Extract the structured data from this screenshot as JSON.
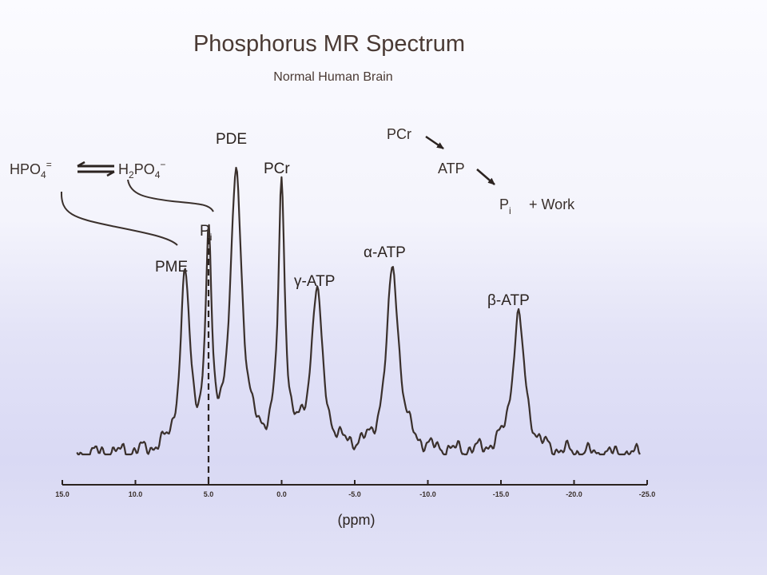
{
  "chart_data": {
    "type": "line",
    "title": "Phosphorus MR Spectrum",
    "subtitle": "Normal Human Brain",
    "xlabel": "(ppm)",
    "ylabel": "",
    "xlim": [
      15.0,
      -25.0
    ],
    "x_reversed": true,
    "xticks": [
      {
        "value": 15.0,
        "label": "15.0"
      },
      {
        "value": 10.0,
        "label": "10.0"
      },
      {
        "value": 5.0,
        "label": "5.0"
      },
      {
        "value": 0.0,
        "label": "0.0"
      },
      {
        "value": -5.0,
        "label": "-5.0"
      },
      {
        "value": -10.0,
        "label": "-10.0"
      },
      {
        "value": -15.0,
        "label": "-15.0"
      },
      {
        "value": -20.0,
        "label": "-20.0"
      },
      {
        "value": -25.0,
        "label": "-25.0"
      }
    ],
    "ylim": [
      0,
      1
    ],
    "grid": false,
    "reference_line_ppm": 5.0,
    "baseline_ppm_range": [
      14.0,
      -24.5
    ],
    "peaks": [
      {
        "label": "PME",
        "ppm": 6.6,
        "height": 0.62,
        "width": 0.45
      },
      {
        "label": "Pi",
        "ppm": 5.0,
        "height": 0.72,
        "width": 0.28
      },
      {
        "label": "PDE",
        "ppm": 3.1,
        "height": 1.0,
        "width": 0.55
      },
      {
        "label": "PCr",
        "ppm": 0.0,
        "height": 0.93,
        "width": 0.32
      },
      {
        "label": "γ-ATP",
        "ppm": -2.4,
        "height": 0.57,
        "width": 0.55
      },
      {
        "label": "α-ATP",
        "ppm": -7.6,
        "height": 0.66,
        "width": 0.6
      },
      {
        "label": "β-ATP",
        "ppm": -16.2,
        "height": 0.49,
        "width": 0.6
      }
    ]
  },
  "peak_labels": {
    "pme": "PME",
    "pi_main": "P",
    "pi_sub": "i",
    "pde": "PDE",
    "pcr": "PCr",
    "gamma_atp": "γ-ATP",
    "alpha_atp": "α-ATP",
    "beta_atp": "β-ATP"
  },
  "equilibrium": {
    "left_main": "HPO",
    "left_sub": "4",
    "left_charge": "=",
    "right_h": "H",
    "right_sub_h": "2",
    "right_po": "PO",
    "right_sub_po": "4",
    "right_charge": "−"
  },
  "reaction": {
    "pcr": "PCr",
    "atp": "ATP",
    "pi_main": "P",
    "pi_sub": "i",
    "work": "+ Work"
  },
  "colors": {
    "trace": "#3a302c",
    "text": "#2b2320",
    "title": "#4a3a34"
  }
}
